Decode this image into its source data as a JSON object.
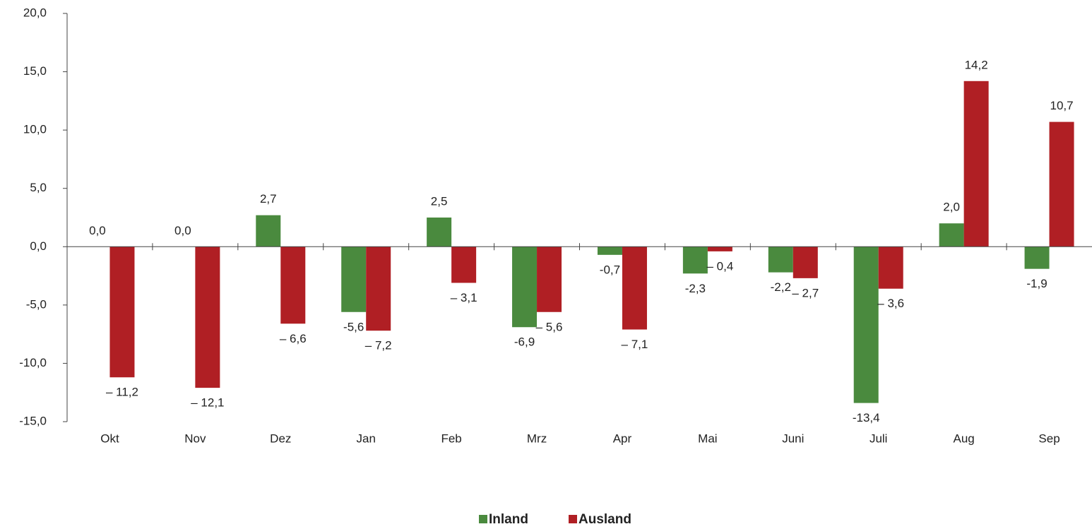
{
  "chart_data": {
    "type": "bar",
    "categories": [
      "Okt",
      "Nov",
      "Dez",
      "Jan",
      "Feb",
      "Mrz",
      "Apr",
      "Mai",
      "Juni",
      "Juli",
      "Aug",
      "Sep"
    ],
    "series": [
      {
        "name": "Inland",
        "color": "#4a8a3e",
        "values": [
          0.0,
          0.0,
          2.7,
          -5.6,
          2.5,
          -6.9,
          -0.7,
          -2.3,
          -2.2,
          -13.4,
          2.0,
          -1.9
        ],
        "value_labels": [
          "0,0",
          "0,0",
          "2,7",
          "-5,6",
          "2,5",
          "-6,9",
          "-0,7",
          "-2,3",
          "-2,2",
          "-13,4",
          "2,0",
          "-1,9"
        ]
      },
      {
        "name": "Ausland",
        "color": "#b01f24",
        "values": [
          -11.2,
          -12.1,
          -6.6,
          -7.2,
          -3.1,
          -5.6,
          -7.1,
          -0.4,
          -2.7,
          -3.6,
          14.2,
          10.7
        ],
        "value_labels": [
          "– 11,2",
          "– 12,1",
          "– 6,6",
          "– 7,2",
          "– 3,1",
          "– 5,6",
          "– 7,1",
          "– 0,4",
          "– 2,7",
          "– 3,6",
          "14,2",
          "10,7"
        ]
      }
    ],
    "ylim": [
      -15,
      20
    ],
    "yticks": [
      {
        "value": -15,
        "label": "-15,0"
      },
      {
        "value": -10,
        "label": "-10,0"
      },
      {
        "value": -5,
        "label": "-5,0"
      },
      {
        "value": 0,
        "label": "0,0"
      },
      {
        "value": 5,
        "label": "5,0"
      },
      {
        "value": 10,
        "label": "10,0"
      },
      {
        "value": 15,
        "label": "15,0"
      },
      {
        "value": 20,
        "label": "20,0"
      }
    ],
    "grid": false,
    "legend": "bottom"
  }
}
